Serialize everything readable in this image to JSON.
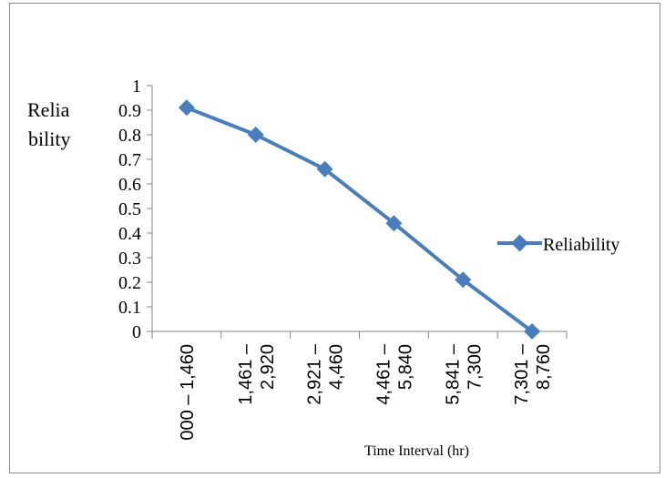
{
  "chart_data": {
    "type": "line",
    "categories": [
      [
        "000 – 1,460"
      ],
      [
        "1,461 –",
        "2,920"
      ],
      [
        "2,921 –",
        "4,460"
      ],
      [
        "4,461 –",
        "5,840"
      ],
      [
        "5,841 –",
        "7,300"
      ],
      [
        "7,301 –",
        "8,760"
      ]
    ],
    "series": [
      {
        "name": "Reliability",
        "values": [
          0.91,
          0.8,
          0.66,
          0.44,
          0.21,
          0.0
        ]
      }
    ],
    "ylabel": [
      "Relia",
      "bility"
    ],
    "xlabel": "Time Interval (hr)",
    "ylim": [
      0,
      1
    ],
    "yticks": [
      "0",
      "0.1",
      "0.2",
      "0.3",
      "0.4",
      "0.5",
      "0.6",
      "0.7",
      "0.8",
      "0.9",
      "1"
    ],
    "grid": false,
    "legend": "right",
    "colors": {
      "series": "#4a7ebb",
      "axis": "#868686"
    }
  }
}
